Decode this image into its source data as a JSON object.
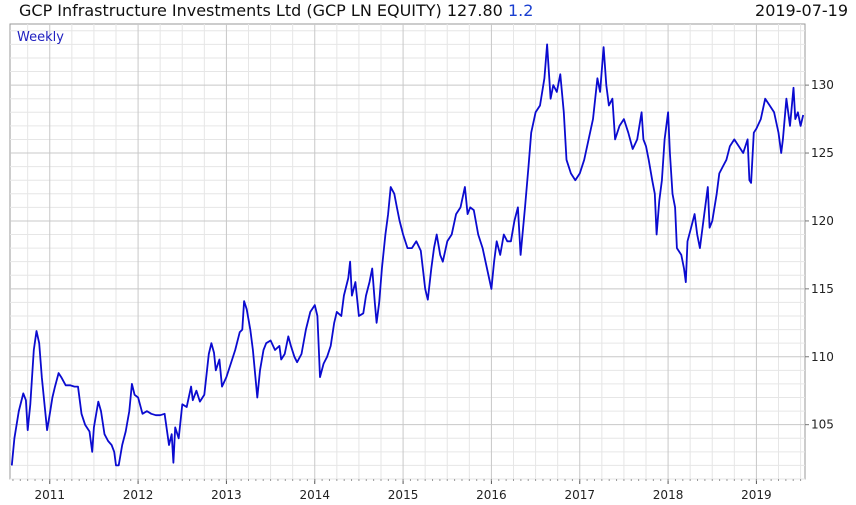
{
  "header": {
    "title": "GCP Infrastructure Investments Ltd (GCP LN EQUITY) 127.80",
    "change": "1.2",
    "date": "2019-07-19"
  },
  "chart_data": {
    "type": "line",
    "period_label": "Weekly",
    "color": "#0b0bd0",
    "xlim": [
      2010.55,
      2019.55
    ],
    "ylim": [
      101,
      134.5
    ],
    "y_ticks": [
      105,
      110,
      115,
      120,
      125,
      130
    ],
    "x_ticks": [
      {
        "label": "2011",
        "value": 2011
      },
      {
        "label": "2012",
        "value": 2012
      },
      {
        "label": "2013",
        "value": 2013
      },
      {
        "label": "2014",
        "value": 2014
      },
      {
        "label": "2015",
        "value": 2015
      },
      {
        "label": "2016",
        "value": 2016
      },
      {
        "label": "2017",
        "value": 2017
      },
      {
        "label": "2018",
        "value": 2018
      },
      {
        "label": "2019",
        "value": 2019
      }
    ],
    "grid": true,
    "series": [
      {
        "points": [
          [
            2010.57,
            102.0
          ],
          [
            2010.6,
            104.0
          ],
          [
            2010.65,
            106.0
          ],
          [
            2010.7,
            107.3
          ],
          [
            2010.73,
            106.8
          ],
          [
            2010.75,
            104.6
          ],
          [
            2010.78,
            106.5
          ],
          [
            2010.82,
            110.5
          ],
          [
            2010.85,
            111.9
          ],
          [
            2010.88,
            111.0
          ],
          [
            2010.91,
            108.5
          ],
          [
            2010.94,
            106.5
          ],
          [
            2010.97,
            104.6
          ],
          [
            2011.0,
            105.8
          ],
          [
            2011.03,
            107.0
          ],
          [
            2011.06,
            107.8
          ],
          [
            2011.1,
            108.8
          ],
          [
            2011.13,
            108.5
          ],
          [
            2011.18,
            107.9
          ],
          [
            2011.23,
            107.9
          ],
          [
            2011.28,
            107.8
          ],
          [
            2011.32,
            107.8
          ],
          [
            2011.36,
            105.8
          ],
          [
            2011.4,
            105.0
          ],
          [
            2011.45,
            104.5
          ],
          [
            2011.48,
            103.0
          ],
          [
            2011.5,
            104.8
          ],
          [
            2011.55,
            106.7
          ],
          [
            2011.58,
            106.0
          ],
          [
            2011.62,
            104.3
          ],
          [
            2011.66,
            103.8
          ],
          [
            2011.7,
            103.5
          ],
          [
            2011.73,
            103.0
          ],
          [
            2011.75,
            102.0
          ],
          [
            2011.78,
            102.0
          ],
          [
            2011.82,
            103.5
          ],
          [
            2011.86,
            104.5
          ],
          [
            2011.9,
            106.0
          ],
          [
            2011.93,
            108.0
          ],
          [
            2011.96,
            107.2
          ],
          [
            2012.0,
            107.0
          ],
          [
            2012.05,
            105.8
          ],
          [
            2012.1,
            106.0
          ],
          [
            2012.15,
            105.8
          ],
          [
            2012.2,
            105.7
          ],
          [
            2012.25,
            105.7
          ],
          [
            2012.3,
            105.8
          ],
          [
            2012.35,
            103.5
          ],
          [
            2012.38,
            104.3
          ],
          [
            2012.4,
            102.2
          ],
          [
            2012.42,
            104.8
          ],
          [
            2012.46,
            104.0
          ],
          [
            2012.5,
            106.5
          ],
          [
            2012.55,
            106.3
          ],
          [
            2012.6,
            107.8
          ],
          [
            2012.62,
            106.8
          ],
          [
            2012.66,
            107.5
          ],
          [
            2012.7,
            106.7
          ],
          [
            2012.75,
            107.2
          ],
          [
            2012.8,
            110.2
          ],
          [
            2012.83,
            111.0
          ],
          [
            2012.86,
            110.3
          ],
          [
            2012.88,
            109.0
          ],
          [
            2012.92,
            109.8
          ],
          [
            2012.95,
            107.8
          ],
          [
            2013.0,
            108.5
          ],
          [
            2013.05,
            109.5
          ],
          [
            2013.1,
            110.5
          ],
          [
            2013.15,
            111.8
          ],
          [
            2013.18,
            112.0
          ],
          [
            2013.2,
            114.1
          ],
          [
            2013.23,
            113.5
          ],
          [
            2013.27,
            112.0
          ],
          [
            2013.3,
            110.5
          ],
          [
            2013.35,
            107.0
          ],
          [
            2013.38,
            109.0
          ],
          [
            2013.42,
            110.5
          ],
          [
            2013.45,
            111.0
          ],
          [
            2013.5,
            111.2
          ],
          [
            2013.55,
            110.5
          ],
          [
            2013.6,
            110.8
          ],
          [
            2013.62,
            109.8
          ],
          [
            2013.66,
            110.2
          ],
          [
            2013.7,
            111.5
          ],
          [
            2013.73,
            110.8
          ],
          [
            2013.77,
            110.0
          ],
          [
            2013.8,
            109.6
          ],
          [
            2013.85,
            110.2
          ],
          [
            2013.9,
            112.0
          ],
          [
            2013.95,
            113.3
          ],
          [
            2014.0,
            113.8
          ],
          [
            2014.03,
            113.0
          ],
          [
            2014.06,
            108.5
          ],
          [
            2014.1,
            109.5
          ],
          [
            2014.14,
            110.0
          ],
          [
            2014.18,
            110.8
          ],
          [
            2014.22,
            112.5
          ],
          [
            2014.25,
            113.3
          ],
          [
            2014.3,
            113.0
          ],
          [
            2014.33,
            114.5
          ],
          [
            2014.38,
            115.8
          ],
          [
            2014.4,
            117.0
          ],
          [
            2014.42,
            114.5
          ],
          [
            2014.46,
            115.5
          ],
          [
            2014.5,
            113.0
          ],
          [
            2014.55,
            113.2
          ],
          [
            2014.58,
            114.5
          ],
          [
            2014.62,
            115.5
          ],
          [
            2014.65,
            116.5
          ],
          [
            2014.68,
            114.0
          ],
          [
            2014.7,
            112.5
          ],
          [
            2014.73,
            114.0
          ],
          [
            2014.76,
            116.5
          ],
          [
            2014.8,
            119.0
          ],
          [
            2014.83,
            120.5
          ],
          [
            2014.86,
            122.5
          ],
          [
            2014.9,
            122.0
          ],
          [
            2014.93,
            121.0
          ],
          [
            2014.96,
            120.0
          ],
          [
            2015.0,
            119.0
          ],
          [
            2015.05,
            118.0
          ],
          [
            2015.1,
            118.0
          ],
          [
            2015.15,
            118.5
          ],
          [
            2015.2,
            117.8
          ],
          [
            2015.25,
            115.0
          ],
          [
            2015.28,
            114.2
          ],
          [
            2015.32,
            116.5
          ],
          [
            2015.35,
            118.0
          ],
          [
            2015.38,
            119.0
          ],
          [
            2015.42,
            117.5
          ],
          [
            2015.45,
            117.0
          ],
          [
            2015.5,
            118.5
          ],
          [
            2015.55,
            119.0
          ],
          [
            2015.6,
            120.5
          ],
          [
            2015.65,
            121.0
          ],
          [
            2015.7,
            122.5
          ],
          [
            2015.73,
            120.5
          ],
          [
            2015.76,
            121.0
          ],
          [
            2015.8,
            120.8
          ],
          [
            2015.85,
            119.0
          ],
          [
            2015.9,
            118.0
          ],
          [
            2015.95,
            116.5
          ],
          [
            2016.0,
            115.0
          ],
          [
            2016.03,
            117.0
          ],
          [
            2016.06,
            118.5
          ],
          [
            2016.1,
            117.5
          ],
          [
            2016.14,
            119.0
          ],
          [
            2016.18,
            118.5
          ],
          [
            2016.22,
            118.5
          ],
          [
            2016.26,
            120.0
          ],
          [
            2016.3,
            121.0
          ],
          [
            2016.33,
            117.5
          ],
          [
            2016.38,
            121.0
          ],
          [
            2016.42,
            124.0
          ],
          [
            2016.45,
            126.5
          ],
          [
            2016.5,
            128.0
          ],
          [
            2016.55,
            128.5
          ],
          [
            2016.6,
            130.5
          ],
          [
            2016.63,
            133.0
          ],
          [
            2016.67,
            129.0
          ],
          [
            2016.7,
            130.0
          ],
          [
            2016.74,
            129.5
          ],
          [
            2016.78,
            130.8
          ],
          [
            2016.82,
            128.0
          ],
          [
            2016.85,
            124.5
          ],
          [
            2016.9,
            123.5
          ],
          [
            2016.95,
            123.0
          ],
          [
            2017.0,
            123.5
          ],
          [
            2017.05,
            124.5
          ],
          [
            2017.1,
            126.0
          ],
          [
            2017.15,
            127.5
          ],
          [
            2017.2,
            130.5
          ],
          [
            2017.23,
            129.5
          ],
          [
            2017.27,
            132.8
          ],
          [
            2017.3,
            130.0
          ],
          [
            2017.33,
            128.5
          ],
          [
            2017.37,
            129.0
          ],
          [
            2017.4,
            126.0
          ],
          [
            2017.45,
            127.0
          ],
          [
            2017.5,
            127.5
          ],
          [
            2017.55,
            126.5
          ],
          [
            2017.6,
            125.3
          ],
          [
            2017.65,
            126.0
          ],
          [
            2017.7,
            128.0
          ],
          [
            2017.72,
            126.0
          ],
          [
            2017.75,
            125.5
          ],
          [
            2017.78,
            124.5
          ],
          [
            2017.82,
            123.0
          ],
          [
            2017.85,
            122.0
          ],
          [
            2017.87,
            119.0
          ],
          [
            2017.9,
            121.5
          ],
          [
            2017.93,
            123.0
          ],
          [
            2017.96,
            126.0
          ],
          [
            2018.0,
            128.0
          ],
          [
            2018.02,
            125.0
          ],
          [
            2018.05,
            122.0
          ],
          [
            2018.08,
            121.0
          ],
          [
            2018.1,
            118.0
          ],
          [
            2018.15,
            117.5
          ],
          [
            2018.18,
            116.5
          ],
          [
            2018.2,
            115.5
          ],
          [
            2018.22,
            118.5
          ],
          [
            2018.26,
            119.5
          ],
          [
            2018.3,
            120.5
          ],
          [
            2018.33,
            119.0
          ],
          [
            2018.36,
            118.0
          ],
          [
            2018.4,
            120.0
          ],
          [
            2018.45,
            122.5
          ],
          [
            2018.47,
            119.5
          ],
          [
            2018.5,
            120.0
          ],
          [
            2018.55,
            122.0
          ],
          [
            2018.58,
            123.5
          ],
          [
            2018.62,
            124.0
          ],
          [
            2018.66,
            124.5
          ],
          [
            2018.7,
            125.5
          ],
          [
            2018.75,
            126.0
          ],
          [
            2018.8,
            125.5
          ],
          [
            2018.85,
            125.0
          ],
          [
            2018.9,
            126.0
          ],
          [
            2018.92,
            123.0
          ],
          [
            2018.94,
            122.8
          ],
          [
            2018.97,
            126.5
          ],
          [
            2019.0,
            126.8
          ],
          [
            2019.05,
            127.5
          ],
          [
            2019.1,
            129.0
          ],
          [
            2019.15,
            128.5
          ],
          [
            2019.2,
            128.0
          ],
          [
            2019.25,
            126.5
          ],
          [
            2019.28,
            125.0
          ],
          [
            2019.3,
            126.0
          ],
          [
            2019.34,
            129.0
          ],
          [
            2019.38,
            127.0
          ],
          [
            2019.42,
            129.8
          ],
          [
            2019.44,
            127.5
          ],
          [
            2019.47,
            128.0
          ],
          [
            2019.5,
            127.0
          ],
          [
            2019.53,
            127.8
          ]
        ]
      }
    ]
  }
}
